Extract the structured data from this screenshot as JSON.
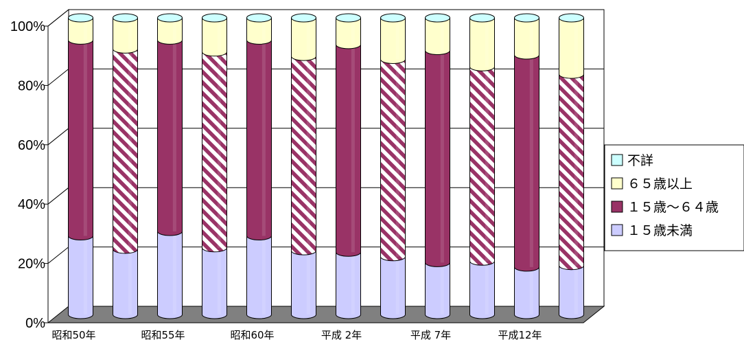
{
  "chart_data": {
    "type": "bar",
    "stacked": "percent",
    "style": "3d-cylinder",
    "categories": [
      "昭和50年",
      "",
      "昭和55年",
      "",
      "昭和60年",
      "",
      "平成 2年",
      "",
      "平成 7年",
      "",
      "平成12年",
      ""
    ],
    "series": [
      {
        "name": "１５歳未満",
        "color": "#ccccff",
        "values": [
          26.5,
          22,
          28,
          22.5,
          26.5,
          21.5,
          21,
          19.5,
          17.5,
          18,
          16,
          16.5
        ]
      },
      {
        "name": "１５歳～６４歳",
        "color": "#993366",
        "values": [
          66,
          67.5,
          64.5,
          66,
          66,
          65.5,
          70,
          66.5,
          71.5,
          65.5,
          71.5,
          64.5
        ]
      },
      {
        "name": "６５歳以上",
        "color": "#ffffcc",
        "values": [
          7.5,
          10.5,
          7.5,
          11.5,
          7.5,
          13,
          9,
          14,
          11,
          16.5,
          12.5,
          19
        ]
      },
      {
        "name": "不詳",
        "color": "#ccffff",
        "values": [
          0,
          0,
          0,
          0,
          0,
          0,
          0,
          0,
          0,
          0,
          0,
          0
        ]
      }
    ],
    "hatched_columns": [
      1,
      3,
      5,
      7,
      9,
      11
    ],
    "ylim": [
      0,
      100
    ],
    "yticks": [
      "0%",
      "20%",
      "40%",
      "60%",
      "80%",
      "100%"
    ],
    "grid": true,
    "legend": {
      "placement": "right",
      "order": [
        "不詳",
        "６５歳以上",
        "１５歳～６４歳",
        "１５歳未満"
      ]
    }
  }
}
